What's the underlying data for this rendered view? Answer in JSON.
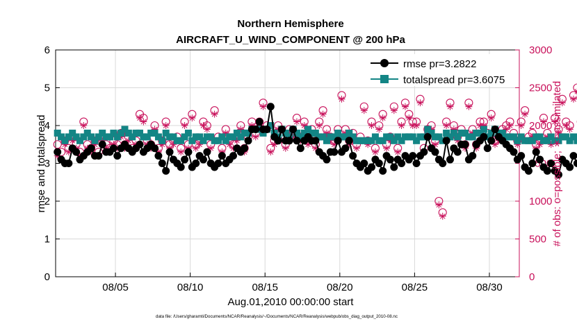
{
  "chart_data": {
    "type": "line",
    "title": "Northern Hemisphere",
    "subtitle": "AIRCRAFT_U_WIND_COMPONENT @ 200 hPa",
    "xlabel": "Aug.01,2010 00:00:00 start",
    "ylabel": "rmse and totalspread",
    "ylabel_right": "# of obs: o=possible; ∗=assimilated",
    "footnote": "data file: /Users/gharamti/Documents/NCAR/Reanalysis/~/Documents/NCAR/Reanalysis/webpub/obs_diag_output_2010-08.nc",
    "xlim": [
      1,
      32
    ],
    "ylim": [
      0,
      6
    ],
    "ylim_right": [
      0,
      3000
    ],
    "x_ticks": [
      5,
      10,
      15,
      20,
      25,
      30
    ],
    "x_tick_labels": [
      "08/05",
      "08/10",
      "08/15",
      "08/20",
      "08/25",
      "08/30"
    ],
    "y_ticks": [
      0,
      1,
      2,
      3,
      4,
      5,
      6
    ],
    "y_tick_labels": [
      "0",
      "1",
      "2",
      "3",
      "4",
      "5",
      "6"
    ],
    "y_ticks_right": [
      0,
      500,
      1000,
      1500,
      2000,
      2500,
      3000
    ],
    "y_tick_labels_right": [
      "0",
      "500",
      "1000",
      "1500",
      "2000",
      "2500",
      "3000"
    ],
    "grid": true,
    "legend_position": "top-right",
    "colors": {
      "rmse": "#000000",
      "totalspread": "#138585",
      "obs": "#c8105a"
    },
    "series": [
      {
        "name": "rmse pr=3.2822",
        "key": "rmse",
        "x_start": 1.125,
        "x_step": 0.25,
        "values": [
          3.3,
          3.1,
          3.0,
          3.0,
          3.4,
          3.3,
          3.1,
          3.2,
          3.3,
          3.4,
          3.2,
          3.2,
          3.5,
          3.3,
          3.3,
          3.4,
          3.2,
          3.4,
          3.5,
          3.4,
          3.3,
          3.4,
          3.5,
          3.3,
          3.4,
          3.5,
          3.4,
          3.2,
          3.0,
          2.8,
          3.3,
          3.1,
          3.0,
          2.9,
          3.1,
          3.3,
          2.9,
          3.0,
          3.2,
          3.1,
          3.3,
          3.0,
          2.9,
          3.0,
          3.2,
          3.0,
          3.1,
          3.2,
          3.4,
          3.3,
          3.4,
          3.6,
          3.9,
          3.9,
          4.1,
          3.9,
          3.9,
          4.5,
          3.7,
          3.6,
          3.9,
          3.6,
          3.6,
          3.9,
          3.6,
          3.4,
          3.6,
          3.7,
          3.6,
          3.6,
          3.3,
          3.2,
          3.1,
          3.3,
          3.3,
          3.6,
          3.3,
          3.4,
          3.6,
          3.2,
          3.0,
          2.9,
          3.0,
          2.8,
          2.9,
          3.1,
          3.0,
          2.8,
          3.2,
          3.1,
          2.9,
          3.1,
          3.0,
          3.2,
          3.1,
          3.2,
          3.0,
          3.2,
          3.3,
          3.7,
          3.4,
          3.3,
          3.1,
          3.0,
          3.6,
          3.1,
          3.4,
          3.3,
          3.5,
          3.5,
          3.1,
          3.2,
          3.5,
          3.6,
          3.7,
          3.4,
          3.6,
          3.9,
          3.7,
          3.6,
          3.5,
          3.4,
          3.3,
          3.1,
          3.2,
          2.9,
          2.8,
          3.0,
          3.3,
          3.1,
          2.9,
          2.8,
          3.0,
          2.8,
          2.7,
          3.1,
          3.0,
          2.9,
          3.2,
          3.0,
          3.1,
          3.2
        ]
      },
      {
        "name": "totalspread pr=3.6075",
        "key": "totalspread",
        "x_start": 1.125,
        "x_step": 0.25,
        "values": [
          3.8,
          3.7,
          3.6,
          3.7,
          3.8,
          3.7,
          3.6,
          3.7,
          3.8,
          3.7,
          3.6,
          3.7,
          3.8,
          3.7,
          3.7,
          3.8,
          3.7,
          3.8,
          3.9,
          3.8,
          3.7,
          3.8,
          3.8,
          3.7,
          3.7,
          3.8,
          3.8,
          3.7,
          3.6,
          3.8,
          3.7,
          3.7,
          3.6,
          3.6,
          3.7,
          3.8,
          3.6,
          3.7,
          3.7,
          3.6,
          3.7,
          3.7,
          3.6,
          3.6,
          3.7,
          3.6,
          3.7,
          3.7,
          3.8,
          3.7,
          3.8,
          3.8,
          3.9,
          3.9,
          3.9,
          3.8,
          3.9,
          4.0,
          3.8,
          3.7,
          3.9,
          3.8,
          3.7,
          3.9,
          3.8,
          3.7,
          3.8,
          3.9,
          3.8,
          3.8,
          3.7,
          3.7,
          3.6,
          3.7,
          3.7,
          3.8,
          3.7,
          3.7,
          3.8,
          3.7,
          3.6,
          3.6,
          3.6,
          3.6,
          3.6,
          3.7,
          3.6,
          3.6,
          3.7,
          3.7,
          3.6,
          3.7,
          3.6,
          3.7,
          3.7,
          3.7,
          3.6,
          3.7,
          3.7,
          3.9,
          3.8,
          3.7,
          3.7,
          3.6,
          3.8,
          3.7,
          3.8,
          3.7,
          3.8,
          3.8,
          3.7,
          3.7,
          3.8,
          3.8,
          3.9,
          3.7,
          3.8,
          3.9,
          3.8,
          3.8,
          3.7,
          3.7,
          3.7,
          3.6,
          3.7,
          3.6,
          3.6,
          3.6,
          3.7,
          3.7,
          3.6,
          3.6,
          3.7,
          3.6,
          3.6,
          3.7,
          3.7,
          3.6,
          3.7,
          3.6,
          3.7,
          3.7
        ]
      },
      {
        "name": "possible",
        "key": "obs_possible",
        "axis": "right",
        "x_start": 1.125,
        "x_step": 0.25,
        "values": [
          1750,
          1650,
          1800,
          1700,
          1850,
          1750,
          1650,
          2050,
          1750,
          1700,
          1800,
          1650,
          1850,
          1750,
          1700,
          1800,
          1750,
          1900,
          1750,
          1850,
          1700,
          1800,
          2150,
          2100,
          1800,
          1750,
          2000,
          1700,
          1800,
          2050,
          1750,
          1800,
          1850,
          1700,
          2050,
          1750,
          2150,
          1750,
          1800,
          2050,
          2000,
          1750,
          2200,
          1850,
          1700,
          1950,
          1800,
          1750,
          1850,
          2000,
          1700,
          1850,
          2050,
          1900,
          2050,
          2300,
          2000,
          1700,
          1800,
          2000,
          1850,
          1750,
          1950,
          1900,
          2100,
          1850,
          2050,
          1800,
          1950,
          1750,
          2050,
          2200,
          1950,
          1850,
          1800,
          1950,
          2400,
          1950,
          1800,
          1900,
          1750,
          1850,
          2250,
          1800,
          2050,
          1700,
          2000,
          2150,
          1750,
          1850,
          2250,
          1700,
          2050,
          2300,
          2150,
          2050,
          2050,
          2350,
          1700,
          1950,
          2000,
          1800,
          1000,
          850,
          2050,
          2300,
          2000,
          1850,
          1950,
          1750,
          2300,
          1950,
          1750,
          2050,
          2050,
          1900,
          2150,
          1800,
          1850,
          1950,
          2000,
          2050,
          1900,
          1800,
          2050,
          2200,
          1850,
          1900,
          1750,
          1800,
          2100,
          1900,
          1800,
          2100,
          1950,
          2350,
          2050,
          2000,
          2400,
          2500,
          2050,
          0
        ]
      },
      {
        "name": "assimilated",
        "key": "obs_assimilated",
        "axis": "right",
        "x_start": 1.125,
        "x_step": 0.25,
        "values": [
          1600,
          1550,
          1750,
          1650,
          1800,
          1700,
          1600,
          2000,
          1700,
          1650,
          1750,
          1600,
          1800,
          1700,
          1650,
          1750,
          1700,
          1850,
          1700,
          1800,
          1650,
          1750,
          2100,
          2050,
          1750,
          1700,
          1950,
          1650,
          1750,
          2000,
          1700,
          1750,
          1800,
          1650,
          2000,
          1700,
          2100,
          1700,
          1750,
          2000,
          1950,
          1700,
          2150,
          1800,
          1650,
          1900,
          1750,
          1700,
          1800,
          1950,
          1650,
          1800,
          2000,
          1850,
          2000,
          2250,
          1950,
          1650,
          1750,
          1950,
          1800,
          1700,
          1900,
          1850,
          2050,
          1800,
          2000,
          1750,
          1900,
          1700,
          2000,
          2150,
          1900,
          1800,
          1750,
          1900,
          2350,
          1900,
          1750,
          1850,
          1700,
          1800,
          2200,
          1750,
          2000,
          1650,
          1950,
          2100,
          1700,
          1800,
          2200,
          1650,
          2000,
          2250,
          2100,
          2000,
          2000,
          2300,
          1650,
          1900,
          1950,
          1750,
          950,
          800,
          2000,
          2250,
          1950,
          1800,
          1900,
          1700,
          2250,
          1900,
          1700,
          2000,
          2000,
          1850,
          2100,
          1750,
          1800,
          1900,
          1950,
          2000,
          1850,
          1750,
          2000,
          2150,
          1800,
          1850,
          1700,
          1750,
          2050,
          1850,
          1750,
          2050,
          1900,
          2300,
          2000,
          1950,
          2350,
          2450,
          2000,
          0
        ]
      }
    ]
  }
}
